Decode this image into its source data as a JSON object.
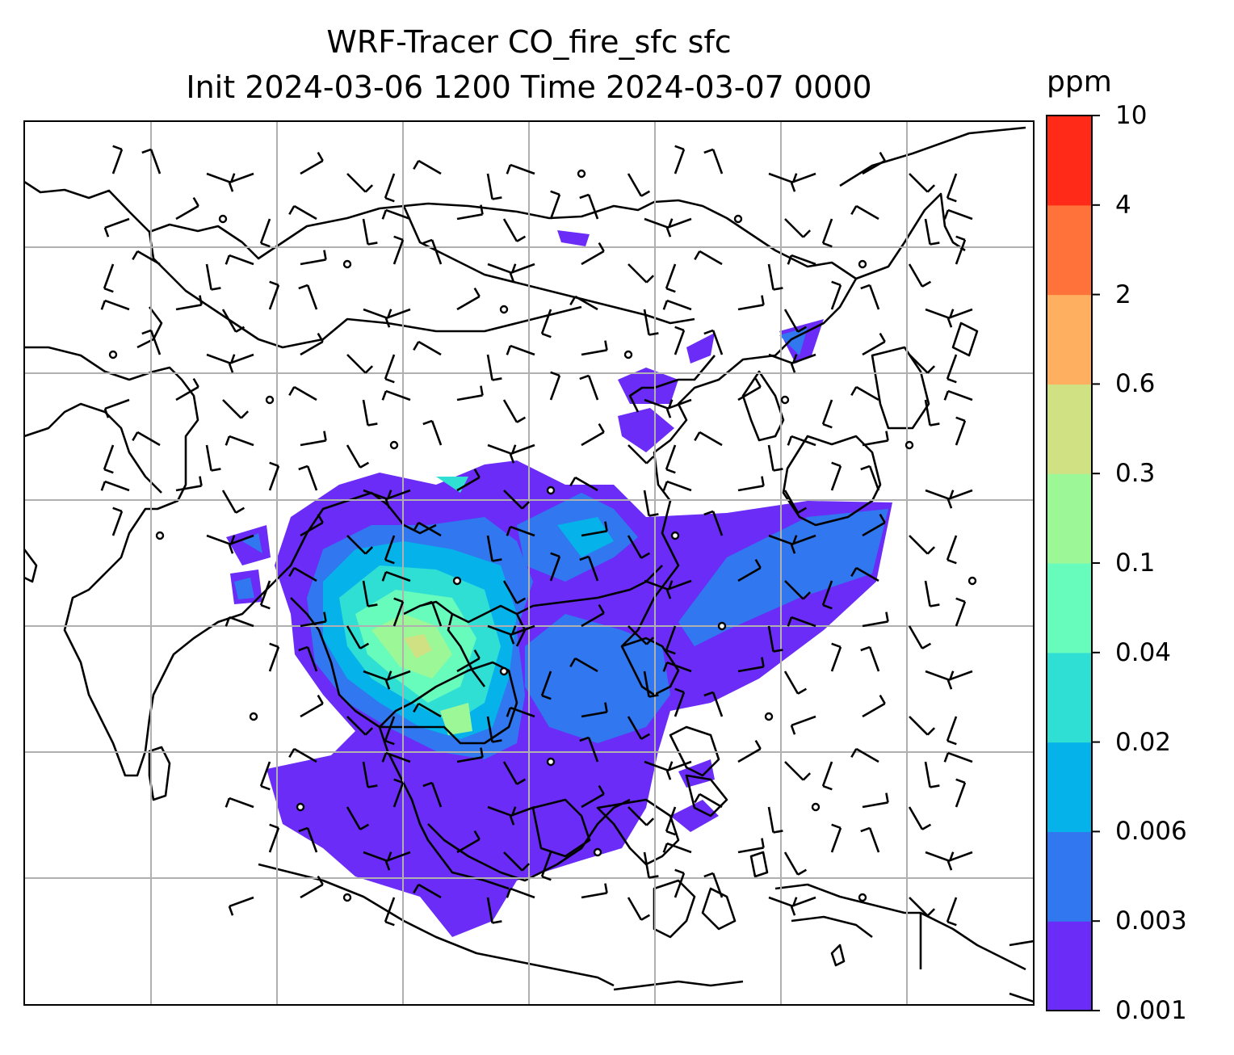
{
  "title": {
    "line1": "WRF-Tracer CO_fire_sfc sfc",
    "line2": "Init 2024-03-06 1200 Time 2024-03-07 0000"
  },
  "colorbar": {
    "units": "ppm",
    "ticks": [
      "0.001",
      "0.003",
      "0.006",
      "0.02",
      "0.04",
      "0.1",
      "0.3",
      "0.6",
      "2",
      "4",
      "10"
    ],
    "colors": [
      "#6a2cf6",
      "#3177ef",
      "#06b2ea",
      "#2fdfd4",
      "#67fbbc",
      "#9cf897",
      "#d0e184",
      "#ffaf60",
      "#ff733b",
      "#ff2b18"
    ]
  },
  "map": {
    "land_outline_color": "#000000",
    "grid_color": "#b0b0b0",
    "barb_color": "#000000"
  }
}
